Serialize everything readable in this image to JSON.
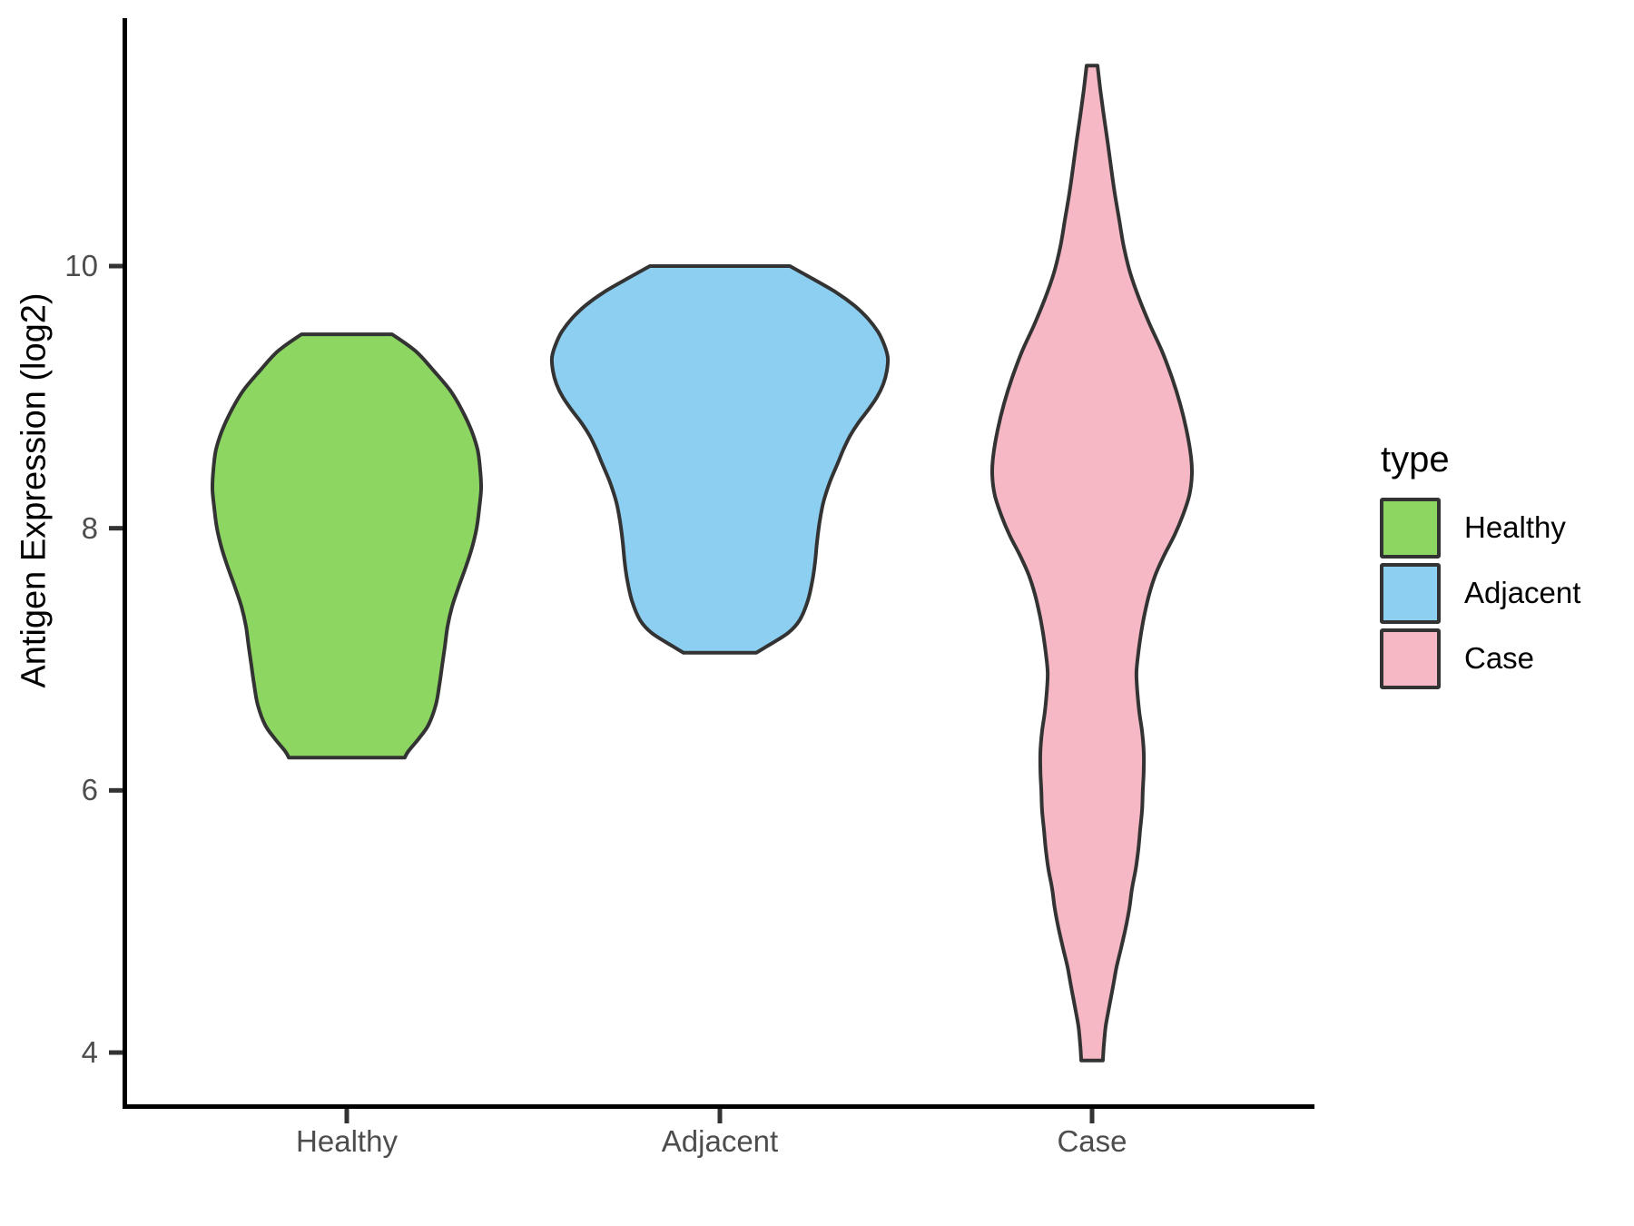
{
  "chart_data": {
    "type": "violin",
    "title": "",
    "xlabel": "",
    "ylabel": "Antigen Expression (log2)",
    "categories": [
      "Healthy",
      "Adjacent",
      "Case"
    ],
    "y_ticks": [
      4,
      6,
      8,
      10
    ],
    "ylim": [
      3.6,
      11.9
    ],
    "grid": "off",
    "background_color": "#FFFFFF",
    "axis_color": "#000000",
    "tick_label_color": "#4D4D4D",
    "outline_color": "#333333",
    "legend": {
      "title": "type",
      "position": "right"
    },
    "series": [
      {
        "name": "Healthy",
        "color": "#8CD661",
        "value_range": [
          6.25,
          9.48
        ],
        "profile": [
          [
            9.48,
            0.243
          ],
          [
            9.35,
            0.37
          ],
          [
            9.2,
            0.467
          ],
          [
            9.05,
            0.555
          ],
          [
            8.9,
            0.618
          ],
          [
            8.75,
            0.667
          ],
          [
            8.6,
            0.701
          ],
          [
            8.45,
            0.715
          ],
          [
            8.3,
            0.72
          ],
          [
            8.15,
            0.71
          ],
          [
            8.0,
            0.696
          ],
          [
            7.85,
            0.671
          ],
          [
            7.7,
            0.637
          ],
          [
            7.55,
            0.599
          ],
          [
            7.4,
            0.564
          ],
          [
            7.25,
            0.54
          ],
          [
            7.1,
            0.526
          ],
          [
            6.95,
            0.511
          ],
          [
            6.8,
            0.496
          ],
          [
            6.65,
            0.477
          ],
          [
            6.5,
            0.438
          ],
          [
            6.4,
            0.389
          ],
          [
            6.3,
            0.331
          ],
          [
            6.25,
            0.311
          ]
        ]
      },
      {
        "name": "Adjacent",
        "color": "#8DCFF0",
        "value_range": [
          7.05,
          10.0
        ],
        "profile": [
          [
            10.0,
            0.375
          ],
          [
            9.9,
            0.501
          ],
          [
            9.8,
            0.623
          ],
          [
            9.7,
            0.72
          ],
          [
            9.6,
            0.793
          ],
          [
            9.5,
            0.847
          ],
          [
            9.4,
            0.881
          ],
          [
            9.3,
            0.9
          ],
          [
            9.2,
            0.895
          ],
          [
            9.1,
            0.876
          ],
          [
            9.0,
            0.842
          ],
          [
            8.9,
            0.793
          ],
          [
            8.8,
            0.74
          ],
          [
            8.7,
            0.696
          ],
          [
            8.6,
            0.662
          ],
          [
            8.5,
            0.633
          ],
          [
            8.35,
            0.589
          ],
          [
            8.2,
            0.555
          ],
          [
            8.05,
            0.535
          ],
          [
            7.9,
            0.521
          ],
          [
            7.75,
            0.511
          ],
          [
            7.6,
            0.496
          ],
          [
            7.45,
            0.472
          ],
          [
            7.3,
            0.428
          ],
          [
            7.2,
            0.365
          ],
          [
            7.1,
            0.253
          ],
          [
            7.05,
            0.195
          ]
        ]
      },
      {
        "name": "Case",
        "color": "#F5B8C4",
        "value_range": [
          3.94,
          11.53
        ],
        "profile": [
          [
            11.53,
            0.029
          ],
          [
            11.35,
            0.044
          ],
          [
            11.15,
            0.063
          ],
          [
            10.95,
            0.083
          ],
          [
            10.75,
            0.102
          ],
          [
            10.55,
            0.122
          ],
          [
            10.35,
            0.146
          ],
          [
            10.15,
            0.17
          ],
          [
            9.95,
            0.204
          ],
          [
            9.75,
            0.253
          ],
          [
            9.55,
            0.311
          ],
          [
            9.35,
            0.375
          ],
          [
            9.15,
            0.428
          ],
          [
            8.95,
            0.472
          ],
          [
            8.75,
            0.506
          ],
          [
            8.55,
            0.53
          ],
          [
            8.4,
            0.535
          ],
          [
            8.25,
            0.521
          ],
          [
            8.1,
            0.487
          ],
          [
            7.95,
            0.443
          ],
          [
            7.8,
            0.389
          ],
          [
            7.65,
            0.341
          ],
          [
            7.5,
            0.307
          ],
          [
            7.35,
            0.282
          ],
          [
            7.2,
            0.263
          ],
          [
            7.05,
            0.248
          ],
          [
            6.9,
            0.238
          ],
          [
            6.75,
            0.243
          ],
          [
            6.6,
            0.253
          ],
          [
            6.45,
            0.268
          ],
          [
            6.3,
            0.277
          ],
          [
            6.15,
            0.277
          ],
          [
            6.0,
            0.272
          ],
          [
            5.85,
            0.268
          ],
          [
            5.7,
            0.258
          ],
          [
            5.55,
            0.248
          ],
          [
            5.4,
            0.234
          ],
          [
            5.25,
            0.214
          ],
          [
            5.1,
            0.2
          ],
          [
            4.95,
            0.18
          ],
          [
            4.8,
            0.156
          ],
          [
            4.65,
            0.131
          ],
          [
            4.5,
            0.112
          ],
          [
            4.35,
            0.092
          ],
          [
            4.2,
            0.073
          ],
          [
            4.05,
            0.063
          ],
          [
            3.94,
            0.058
          ]
        ]
      }
    ]
  }
}
